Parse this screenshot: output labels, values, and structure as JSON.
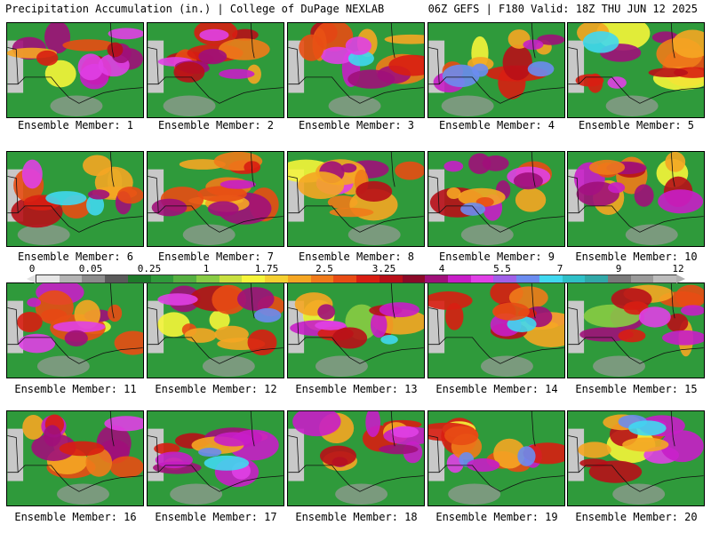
{
  "header": {
    "left_title": "Precipitation Accumulation (in.) | College of DuPage NEXLAB",
    "right_title": "06Z GEFS | F180 Valid: 18Z THU JUN 12 2025"
  },
  "colorbar": {
    "tick_labels": [
      "0",
      "0.05",
      "0.25",
      "1",
      "1.75",
      "2.5",
      "3.25",
      "4",
      "5.5",
      "7",
      "9",
      "12"
    ],
    "colors": [
      "#e6e6e6",
      "#b4b4b4",
      "#8c8c8c",
      "#5a5a5a",
      "#1e7a2a",
      "#2f9a3b",
      "#55b040",
      "#88cc44",
      "#c8e040",
      "#f5f53a",
      "#f5d030",
      "#f5a623",
      "#f07b1a",
      "#e84c14",
      "#d81e12",
      "#b80f18",
      "#8c0a28",
      "#a0107a",
      "#c81ec8",
      "#e040e6",
      "#a060e8",
      "#6b8cf0",
      "#40d8f0",
      "#2ec0c8",
      "#30a8a8",
      "#7a7a7a",
      "#9a9a9a",
      "#bcbcbc"
    ]
  },
  "members": [
    {
      "label": "Ensemble Member: 1"
    },
    {
      "label": "Ensemble Member: 2"
    },
    {
      "label": "Ensemble Member: 3"
    },
    {
      "label": "Ensemble Member: 4"
    },
    {
      "label": "Ensemble Member: 5"
    },
    {
      "label": "Ensemble Member: 6"
    },
    {
      "label": "Ensemble Member: 7"
    },
    {
      "label": "Ensemble Member: 8"
    },
    {
      "label": "Ensemble Member: 9"
    },
    {
      "label": "Ensemble Member: 10"
    },
    {
      "label": "Ensemble Member: 11"
    },
    {
      "label": "Ensemble Member: 12"
    },
    {
      "label": "Ensemble Member: 13"
    },
    {
      "label": "Ensemble Member: 14"
    },
    {
      "label": "Ensemble Member: 15"
    },
    {
      "label": "Ensemble Member: 16"
    },
    {
      "label": "Ensemble Member: 17"
    },
    {
      "label": "Ensemble Member: 18"
    },
    {
      "label": "Ensemble Member: 19"
    },
    {
      "label": "Ensemble Member: 20"
    }
  ]
}
